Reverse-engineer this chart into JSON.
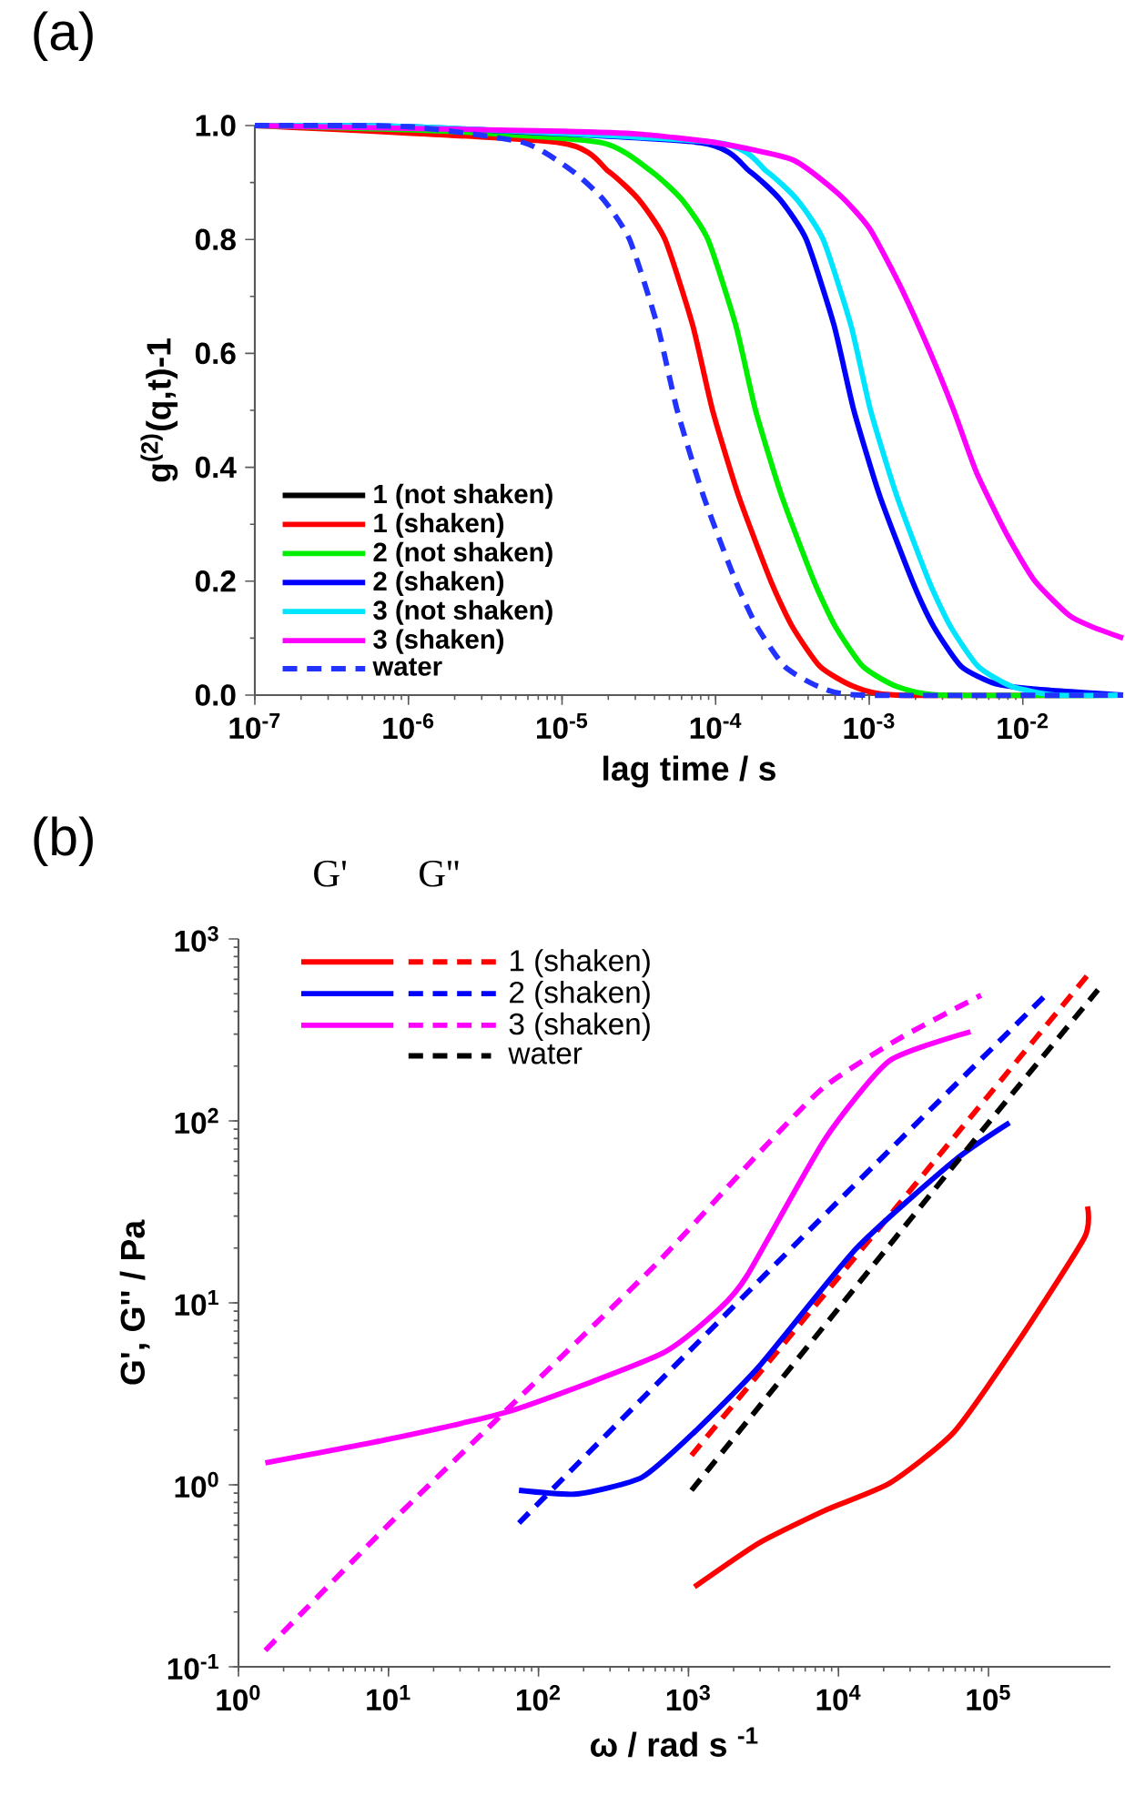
{
  "chart_data": [
    {
      "type": "line",
      "title": "(a)",
      "xlabel": "lag time / s",
      "ylabel": "g$^{(2)}$(q,t)-1",
      "log": "x",
      "legend": "bottom left",
      "line_style": "solid",
      "xlim": [
        1e-07,
        0.045
      ],
      "ylim": [
        0,
        1.0
      ],
      "xticks": [
        {
          "value": 1e-07,
          "label": "10$^{-7}$"
        },
        {
          "value": 1e-06,
          "label": "10$^{-6}$"
        },
        {
          "value": 1e-05,
          "label": "10$^{-5}$"
        },
        {
          "value": 0.0001,
          "label": "10$^{-4}$"
        },
        {
          "value": 0.001,
          "label": "10$^{-3}$"
        },
        {
          "value": 0.01,
          "label": "10$^{-2}$"
        }
      ],
      "yticks": [
        {
          "value": 0,
          "label": "0.0"
        },
        {
          "value": 0.2,
          "label": "0.2"
        },
        {
          "value": 0.4,
          "label": "0.4"
        },
        {
          "value": 0.6,
          "label": "0.6"
        },
        {
          "value": 0.8,
          "label": "0.8"
        },
        {
          "value": 1.0,
          "label": "1.0"
        }
      ],
      "series": [
        {
          "name": "1 (not shaken)",
          "color": "#000000",
          "values": [
            null
          ]
        },
        {
          "name": "1 (shaken)",
          "color": "#ff0000",
          "x": [
            1e-07,
            1e-06,
            9.55e-06,
            2e-05,
            3.16e-05,
            4.68e-05,
            7.08e-05,
            9.55e-05,
            0.000141,
            0.000229,
            0.000316,
            0.000479,
            0.000794,
            0.00151,
            0.045
          ],
          "values": [
            1.0,
            null,
            0.97,
            0.92,
            0.87,
            0.8,
            0.65,
            0.5,
            0.35,
            0.2,
            0.12,
            0.05,
            0.015,
            0.0,
            0.0
          ]
        },
        {
          "name": "2 (not shaken)",
          "color": "#00ee00",
          "x": [
            1e-07,
            1e-06,
            1.82e-06,
            1.82e-05,
            3.8e-05,
            6.03e-05,
            8.91e-05,
            0.000135,
            0.000182,
            0.000269,
            0.000437,
            0.000603,
            0.000912,
            0.00151,
            0.00288,
            0.045
          ],
          "values": [
            1.0,
            null,
            0.99,
            0.97,
            0.92,
            0.87,
            0.8,
            0.65,
            0.5,
            0.35,
            0.2,
            0.12,
            0.05,
            0.015,
            0.0,
            0.0
          ]
        },
        {
          "name": "2 (shaken)",
          "color": "#0000ff",
          "x": [
            1e-07,
            1e-06,
            1e-05,
            7.94e-05,
            0.000166,
            0.000263,
            0.000389,
            0.000589,
            0.000794,
            0.00117,
            0.00191,
            0.00263,
            0.00398,
            0.00661,
            0.0126,
            0.045
          ],
          "values": [
            1.0,
            0.998,
            null,
            0.97,
            0.92,
            0.87,
            0.8,
            0.65,
            0.5,
            0.35,
            0.2,
            0.12,
            0.05,
            0.02,
            0.01,
            0.0
          ]
        },
        {
          "name": "3 (not shaken)",
          "color": "#00e5ff",
          "x": [
            1e-07,
            1e-06,
            1e-05,
            0.000102,
            0.000214,
            0.000339,
            0.000501,
            0.000759,
            0.00102,
            0.00151,
            0.00245,
            0.00339,
            0.00513,
            0.00851,
            0.0162,
            0.045
          ],
          "values": [
            1.0,
            0.998,
            null,
            0.97,
            0.92,
            0.87,
            0.8,
            0.65,
            0.5,
            0.35,
            0.2,
            0.12,
            0.05,
            0.015,
            0.0,
            0.0
          ]
        },
        {
          "name": "3 (shaken)",
          "color": "#ff00ff",
          "x": [
            1e-07,
            1e-06,
            1e-05,
            3.16e-05,
            0.0001,
            0.000316,
            0.000631,
            0.001,
            0.00158,
            0.00251,
            0.00355,
            0.00501,
            0.00794,
            0.012,
            0.02,
            0.0282,
            0.045
          ],
          "values": [
            1.0,
            0.995,
            0.99,
            0.985,
            0.97,
            0.94,
            0.88,
            0.82,
            0.72,
            0.6,
            0.5,
            0.39,
            0.28,
            0.2,
            0.14,
            0.12,
            0.1
          ]
        },
        {
          "name": "water",
          "color": "#2233ff",
          "line_style": "dashed",
          "x": [
            1e-07,
            1e-06,
            5.62e-06,
            1.17e-05,
            1.86e-05,
            2.75e-05,
            4.17e-05,
            5.62e-05,
            8.32e-05,
            0.000135,
            0.000186,
            0.000282,
            0.000468,
            0.000891,
            0.045
          ],
          "values": [
            1.0,
            0.998,
            0.97,
            0.92,
            0.87,
            0.8,
            0.65,
            0.5,
            0.35,
            0.2,
            0.12,
            0.05,
            0.015,
            0.0,
            0.0
          ]
        }
      ]
    },
    {
      "type": "line",
      "title": "(b)",
      "xlabel": "ω / rad s $^{-1}$",
      "ylabel": "G', G'' / Pa",
      "log": "xy",
      "legend": "top left",
      "line_style": "solid",
      "annotations": [
        "G'",
        "G''"
      ],
      "xlim": [
        1,
        650000
      ],
      "ylim": [
        0.1,
        1000
      ],
      "xticks": [
        {
          "value": 1,
          "label": "10$^{0}$"
        },
        {
          "value": 10,
          "label": "10$^{1}$"
        },
        {
          "value": 100,
          "label": "10$^{2}$"
        },
        {
          "value": 1000,
          "label": "10$^{3}$"
        },
        {
          "value": 10000,
          "label": "10$^{4}$"
        },
        {
          "value": 100000,
          "label": "10$^{5}$"
        }
      ],
      "yticks": [
        {
          "value": 0.1,
          "label": "10$^{-1}$"
        },
        {
          "value": 1,
          "label": "10$^{0}$"
        },
        {
          "value": 10,
          "label": "10$^{1}$"
        },
        {
          "value": 100,
          "label": "10$^{2}$"
        },
        {
          "value": 1000,
          "label": "10$^{3}$"
        }
      ],
      "series": [
        {
          "color": "#ff0000",
          "x": [
            1096,
            2951,
            8128,
            21880,
            58880,
            158500,
            436500,
            457100
          ],
          "values": [
            0.275,
            0.479,
            0.724,
            1.02,
            1.95,
            6.17,
            22.9,
            33.9
          ]
        },
        {
          "name": "1 (shaken)",
          "color": "#ff0000",
          "line_style": "dashed",
          "x": [
            1047,
            10000,
            100000,
            457100
          ],
          "values": [
            1.45,
            13.8,
            138,
            631
          ]
        },
        {
          "color": "#0000ff",
          "x": [
            74.1,
            182,
            490,
            1096,
            2951,
            13180,
            58880,
            138000
          ],
          "values": [
            0.933,
            0.891,
            1.1,
            1.95,
            4.47,
            19.95,
            60.3,
            97.7
          ]
        },
        {
          "name": "2 (shaken)",
          "color": "#0000ff",
          "line_style": "dashed",
          "x": [
            74.1,
            1000,
            10000,
            239900
          ],
          "values": [
            0.617,
            5.37,
            36.3,
            490
          ]
        },
        {
          "color": "#ff00ff",
          "x": [
            1.51,
            10,
            67.6,
            661,
            1622,
            2455,
            8128,
            21880,
            75860
          ],
          "values": [
            1.32,
            1.78,
            2.57,
            5.25,
            9.33,
            14.1,
            79.4,
            214,
            309
          ]
        },
        {
          "name": "3 (shaken)",
          "color": "#ff00ff",
          "line_style": "dashed",
          "x": [
            1.51,
            10,
            57.5,
            603,
            3162,
            8128,
            25120,
            89125
          ],
          "values": [
            0.123,
            0.603,
            2.45,
            16.2,
            70.8,
            155,
            282,
            490
          ]
        },
        {
          "name": "water",
          "color": "#000000",
          "line_style": "dashed",
          "x": [
            1047,
            10000,
            100000,
            537000
          ],
          "values": [
            0.933,
            9.33,
            97.7,
            525
          ]
        }
      ]
    }
  ]
}
